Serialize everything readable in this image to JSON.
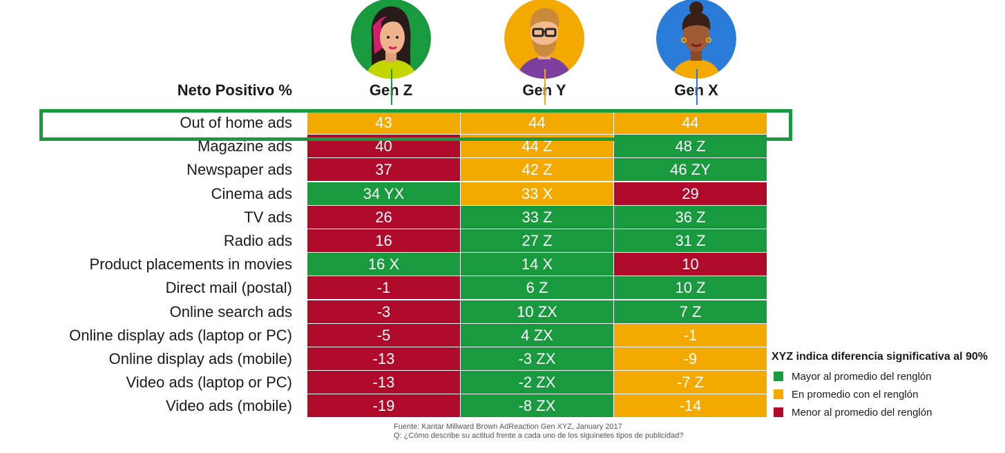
{
  "chart_data": {
    "type": "table",
    "title": "Neto Positivo %",
    "columns": [
      {
        "label": "Gen Z",
        "line_color": "#1a9a3e",
        "avatar": "woman-gen-z-avatar"
      },
      {
        "label": "Gen Y",
        "line_color": "#f4a900",
        "avatar": "man-gen-y-avatar"
      },
      {
        "label": "Gen X",
        "line_color": "#2b7bd8",
        "avatar": "woman-gen-x-avatar"
      }
    ],
    "rows": [
      {
        "label": "Out of home ads",
        "values": [
          43,
          44,
          44
        ],
        "display": [
          "43",
          "44",
          "44"
        ],
        "status": [
          "avg",
          "avg",
          "avg"
        ]
      },
      {
        "label": "Magazine ads",
        "values": [
          40,
          44,
          48
        ],
        "display": [
          "40",
          "44 Z",
          "48 Z"
        ],
        "status": [
          "below",
          "avg",
          "above"
        ]
      },
      {
        "label": "Newspaper ads",
        "values": [
          37,
          42,
          46
        ],
        "display": [
          "37",
          "42 Z",
          "46 ZY"
        ],
        "status": [
          "below",
          "avg",
          "above"
        ]
      },
      {
        "label": "Cinema ads",
        "values": [
          34,
          33,
          29
        ],
        "display": [
          "34 YX",
          "33 X",
          "29"
        ],
        "status": [
          "above",
          "avg",
          "below"
        ]
      },
      {
        "label": "TV ads",
        "values": [
          26,
          33,
          36
        ],
        "display": [
          "26",
          "33 Z",
          "36 Z"
        ],
        "status": [
          "below",
          "above",
          "above"
        ]
      },
      {
        "label": "Radio ads",
        "values": [
          16,
          27,
          31
        ],
        "display": [
          "16",
          "27 Z",
          "31 Z"
        ],
        "status": [
          "below",
          "above",
          "above"
        ]
      },
      {
        "label": "Product placements in movies",
        "values": [
          16,
          14,
          10
        ],
        "display": [
          "16 X",
          "14 X",
          "10"
        ],
        "status": [
          "above",
          "above",
          "below"
        ]
      },
      {
        "label": "Direct mail (postal)",
        "values": [
          -1,
          6,
          10
        ],
        "display": [
          "-1",
          "6 Z",
          "10 Z"
        ],
        "status": [
          "below",
          "above",
          "above"
        ]
      },
      {
        "label": "Online search ads",
        "values": [
          -3,
          10,
          7
        ],
        "display": [
          "-3",
          "10 ZX",
          "7 Z"
        ],
        "status": [
          "below",
          "above",
          "above"
        ]
      },
      {
        "label": "Online display ads (laptop or PC)",
        "values": [
          -5,
          4,
          -1
        ],
        "display": [
          "-5",
          "4 ZX",
          "-1"
        ],
        "status": [
          "below",
          "above",
          "avg"
        ]
      },
      {
        "label": "Online display  ads (mobile)",
        "values": [
          -13,
          -3,
          -9
        ],
        "display": [
          "-13",
          "-3 ZX",
          "-9"
        ],
        "status": [
          "below",
          "above",
          "avg"
        ]
      },
      {
        "label": "Video ads (laptop or PC)",
        "values": [
          -13,
          -2,
          -7
        ],
        "display": [
          "-13",
          "-2 ZX",
          "-7 Z"
        ],
        "status": [
          "below",
          "above",
          "avg"
        ]
      },
      {
        "label": "Video ads (mobile)",
        "values": [
          -19,
          -8,
          -14
        ],
        "display": [
          "-19",
          "-8 ZX",
          "-14"
        ],
        "status": [
          "below",
          "above",
          "avg"
        ]
      }
    ],
    "highlighted_row": "Out of home ads",
    "colors": {
      "above": "#1a9a3e",
      "avg": "#f4a900",
      "below": "#b00a2a"
    },
    "legend": {
      "title": "XYZ indica diferencia significativa al 90%",
      "items": [
        {
          "key": "above",
          "label": "Mayor al promedio del renglón"
        },
        {
          "key": "avg",
          "label": "En promedio con el renglón"
        },
        {
          "key": "below",
          "label": "Menor al promedio del renglón"
        }
      ]
    },
    "source": [
      "Fuente: Kantar Millward Brown AdReaction Gen XYZ, January 2017",
      "Q: ¿Cómo describe su actitud frente a cada uno de los siguinetes tipos de publicidad?"
    ]
  }
}
